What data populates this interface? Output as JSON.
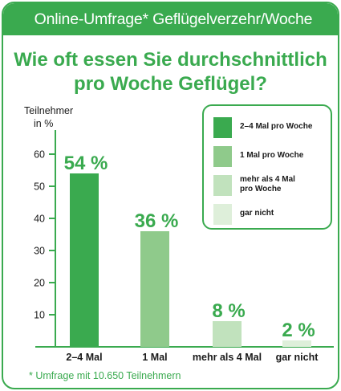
{
  "header": {
    "title": "Online-Umfrage* Geflügelverzehr/Woche"
  },
  "question": {
    "line1": "Wie oft essen Sie durchschnittlich",
    "line2": "pro Woche Geflügel?"
  },
  "footnote": "* Umfrage mit 10.650 Teilnehmern",
  "colors": {
    "accent": "#3aaa4f",
    "text": "#1a1a1a"
  },
  "chart_data": {
    "type": "bar",
    "title": "Wie oft essen Sie durchschnittlich pro Woche Geflügel?",
    "ylabel_line1": "Teilnehmer",
    "ylabel_line2": "in %",
    "xlabel": "",
    "ylim": [
      0,
      65
    ],
    "yticks": [
      10,
      20,
      30,
      40,
      50,
      60
    ],
    "grid": false,
    "legend_position": "top-right",
    "categories": [
      "2–4 Mal",
      "1 Mal",
      "mehr als 4 Mal",
      "gar nicht"
    ],
    "values": [
      54,
      36,
      8,
      2
    ],
    "value_labels": [
      "54 %",
      "36 %",
      "8 %",
      "2 %"
    ],
    "colors": [
      "#3aaa4f",
      "#8fca8b",
      "#c1e2bd",
      "#deefda"
    ],
    "legend": [
      {
        "label": "2–4 Mal pro Woche",
        "color": "#3aaa4f"
      },
      {
        "label": "1 Mal pro Woche",
        "color": "#8fca8b"
      },
      {
        "label": "mehr als 4 Mal pro Woche",
        "color": "#c1e2bd"
      },
      {
        "label": "gar nicht",
        "color": "#deefda"
      }
    ]
  }
}
